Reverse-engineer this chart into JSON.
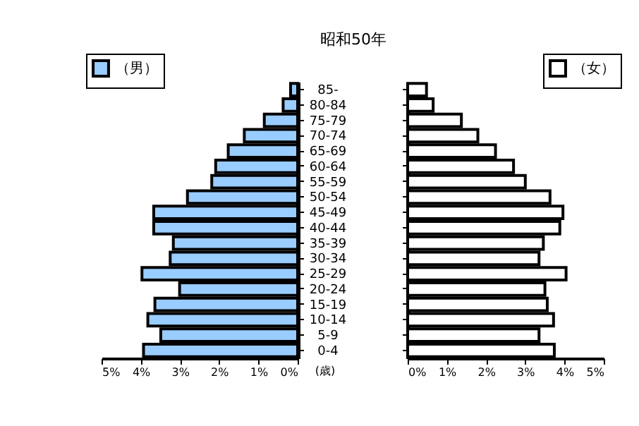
{
  "chart_data": [
    {
      "type": "bar",
      "orientation": "horizontal",
      "title": "昭和50年",
      "ylabel": "(歳)",
      "categories": [
        "85-",
        "80-84",
        "75-79",
        "70-74",
        "65-69",
        "60-64",
        "55-59",
        "50-54",
        "45-49",
        "40-44",
        "35-39",
        "30-34",
        "25-29",
        "20-24",
        "15-19",
        "10-14",
        "5-9",
        "0-4"
      ],
      "series": [
        {
          "name": "（男）",
          "color": "#99ccff",
          "values": [
            0.18,
            0.37,
            0.85,
            1.36,
            1.77,
            2.09,
            2.19,
            2.81,
            3.67,
            3.67,
            3.17,
            3.25,
            3.97,
            3.01,
            3.64,
            3.82,
            3.49,
            3.93
          ]
        }
      ],
      "xlim": [
        5,
        0
      ],
      "xticks": [
        {
          "value": 5,
          "label": "5%"
        },
        {
          "value": 4,
          "label": "4%"
        },
        {
          "value": 3,
          "label": "3%"
        },
        {
          "value": 2,
          "label": "2%"
        },
        {
          "value": 1,
          "label": "1%"
        },
        {
          "value": 0,
          "label": "0%"
        }
      ],
      "legend": "top left",
      "grid": false
    },
    {
      "type": "bar",
      "orientation": "horizontal",
      "series": [
        {
          "name": "（女）",
          "color": "#ffffff",
          "values": [
            0.48,
            0.65,
            1.37,
            1.79,
            2.24,
            2.7,
            3.0,
            3.63,
            3.96,
            3.88,
            3.46,
            3.35,
            4.04,
            3.5,
            3.56,
            3.72,
            3.35,
            3.74
          ]
        }
      ],
      "xlim": [
        0,
        5
      ],
      "xticks": [
        {
          "value": 0,
          "label": "0%"
        },
        {
          "value": 1,
          "label": "1%"
        },
        {
          "value": 2,
          "label": "2%"
        },
        {
          "value": 3,
          "label": "3%"
        },
        {
          "value": 4,
          "label": "4%"
        },
        {
          "value": 5,
          "label": "5%"
        }
      ],
      "legend": "top right",
      "tick_labels": "x",
      "grid": false
    }
  ]
}
